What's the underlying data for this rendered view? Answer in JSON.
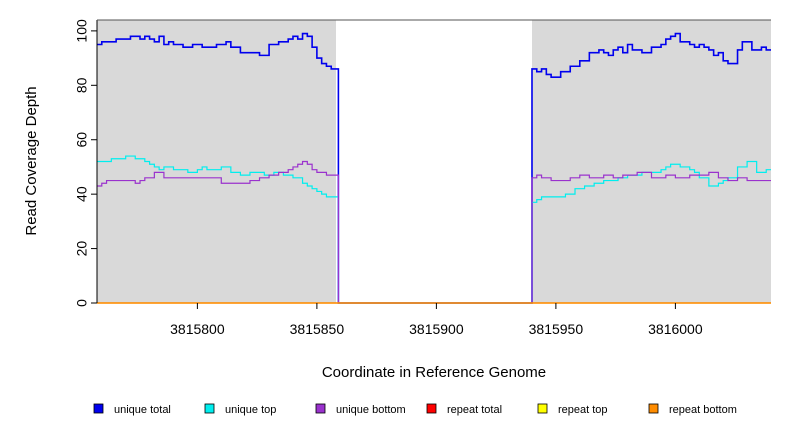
{
  "chart_data": {
    "type": "line",
    "title": "",
    "xlabel": "Coordinate in Reference Genome",
    "ylabel": "Read Coverage Depth",
    "xlim": [
      3815758,
      3816040
    ],
    "ylim": [
      0,
      104
    ],
    "x_ticks": [
      3815800,
      3815850,
      3815900,
      3815950,
      3816000
    ],
    "y_ticks": [
      0,
      20,
      40,
      60,
      80,
      100
    ],
    "shaded_regions": [
      [
        3815758,
        3815858
      ],
      [
        3815940,
        3816040
      ]
    ],
    "background_color": "#d9d9d9",
    "step_lines": true,
    "legend_position": "bottom",
    "series": [
      {
        "name": "unique total",
        "color": "#0000ee",
        "x": [
          3815758,
          3815760,
          3815766,
          3815772,
          3815776,
          3815778,
          3815780,
          3815782,
          3815784,
          3815786,
          3815788,
          3815790,
          3815794,
          3815798,
          3815802,
          3815808,
          3815812,
          3815814,
          3815818,
          3815826,
          3815830,
          3815834,
          3815838,
          3815840,
          3815842,
          3815844,
          3815846,
          3815848,
          3815850,
          3815852,
          3815854,
          3815856,
          3815858,
          3815859,
          3815939,
          3815940,
          3815942,
          3815944,
          3815946,
          3815948,
          3815952,
          3815956,
          3815960,
          3815964,
          3815968,
          3815970,
          3815972,
          3815974,
          3815976,
          3815978,
          3815980,
          3815982,
          3815986,
          3815990,
          3815994,
          3815996,
          3815998,
          3816000,
          3816002,
          3816006,
          3816008,
          3816010,
          3816012,
          3816014,
          3816016,
          3816018,
          3816020,
          3816022,
          3816026,
          3816028,
          3816032,
          3816036,
          3816038,
          3816040
        ],
        "values": [
          95,
          96,
          97,
          98,
          97,
          98,
          97,
          96,
          98,
          95,
          96,
          95,
          94,
          95,
          94,
          95,
          96,
          94,
          92,
          91,
          95,
          96,
          97,
          98,
          97,
          99,
          98,
          94,
          90,
          88,
          87,
          86,
          86,
          0,
          0,
          86,
          85,
          86,
          84,
          83,
          85,
          87,
          89,
          92,
          93,
          92,
          91,
          93,
          94,
          92,
          95,
          93,
          92,
          94,
          95,
          97,
          98,
          99,
          96,
          95,
          94,
          95,
          94,
          93,
          91,
          92,
          89,
          88,
          93,
          96,
          93,
          94,
          93,
          93
        ]
      },
      {
        "name": "unique top",
        "color": "#00eeee",
        "x": [
          3815758,
          3815764,
          3815770,
          3815774,
          3815778,
          3815780,
          3815782,
          3815784,
          3815786,
          3815790,
          3815796,
          3815800,
          3815802,
          3815804,
          3815810,
          3815814,
          3815818,
          3815822,
          3815828,
          3815832,
          3815836,
          3815840,
          3815844,
          3815846,
          3815848,
          3815850,
          3815852,
          3815854,
          3815856,
          3815858,
          3815859,
          3815939,
          3815940,
          3815942,
          3815944,
          3815950,
          3815954,
          3815958,
          3815962,
          3815966,
          3815970,
          3815976,
          3815980,
          3815986,
          3815990,
          3815994,
          3815996,
          3815998,
          3816002,
          3816006,
          3816008,
          3816010,
          3816014,
          3816018,
          3816020,
          3816022,
          3816026,
          3816030,
          3816034,
          3816038,
          3816040
        ],
        "values": [
          52,
          53,
          54,
          53,
          52,
          51,
          50,
          49,
          50,
          49,
          48,
          49,
          50,
          49,
          50,
          48,
          47,
          48,
          47,
          48,
          47,
          46,
          44,
          43,
          42,
          41,
          40,
          39,
          39,
          39,
          0,
          0,
          37,
          38,
          39,
          39,
          40,
          42,
          43,
          44,
          45,
          46,
          47,
          48,
          48,
          49,
          50,
          51,
          50,
          49,
          48,
          46,
          43,
          44,
          45,
          46,
          50,
          52,
          48,
          49,
          49
        ]
      },
      {
        "name": "unique bottom",
        "color": "#9a32cd",
        "x": [
          3815758,
          3815760,
          3815762,
          3815770,
          3815774,
          3815776,
          3815778,
          3815782,
          3815786,
          3815792,
          3815798,
          3815804,
          3815810,
          3815818,
          3815822,
          3815826,
          3815830,
          3815834,
          3815838,
          3815840,
          3815842,
          3815844,
          3815846,
          3815848,
          3815850,
          3815852,
          3815854,
          3815858,
          3815859,
          3815939,
          3815940,
          3815942,
          3815944,
          3815948,
          3815956,
          3815960,
          3815964,
          3815970,
          3815974,
          3815978,
          3815984,
          3815990,
          3815996,
          3816000,
          3816006,
          3816010,
          3816014,
          3816018,
          3816022,
          3816026,
          3816030,
          3816034,
          3816040
        ],
        "values": [
          43,
          44,
          45,
          45,
          44,
          45,
          46,
          48,
          46,
          46,
          46,
          46,
          44,
          44,
          45,
          46,
          47,
          48,
          49,
          50,
          51,
          52,
          51,
          49,
          48,
          48,
          47,
          47,
          0,
          0,
          46,
          47,
          46,
          45,
          46,
          47,
          46,
          47,
          46,
          47,
          48,
          46,
          47,
          46,
          47,
          47,
          48,
          46,
          45,
          46,
          45,
          45,
          45
        ]
      },
      {
        "name": "repeat total",
        "color": "#ff0000",
        "x": [
          3815758,
          3816040
        ],
        "values": [
          0,
          0
        ]
      },
      {
        "name": "repeat top",
        "color": "#ffff00",
        "x": [
          3815758,
          3816040
        ],
        "values": [
          0,
          0
        ]
      },
      {
        "name": "repeat bottom",
        "color": "#ff8c00",
        "x": [
          3815758,
          3816040
        ],
        "values": [
          0,
          0
        ]
      }
    ]
  }
}
